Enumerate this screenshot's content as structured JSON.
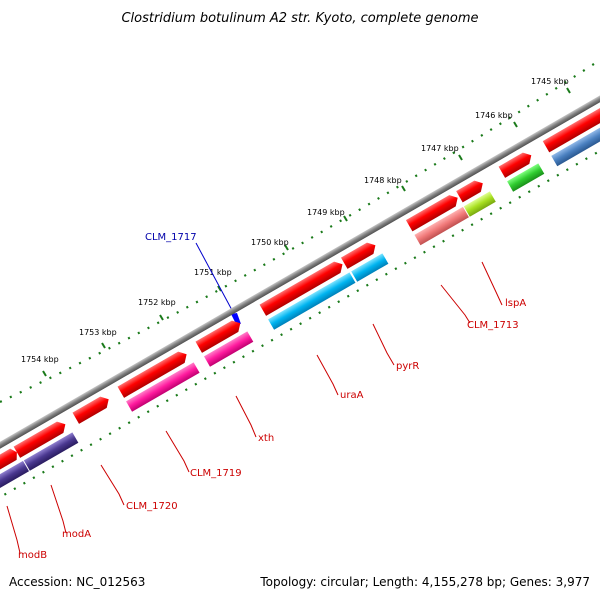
{
  "title": "Clostridium botulinum A2 str. Kyoto, complete genome",
  "footer": {
    "accession": "Accession: NC_012563",
    "summary": "Topology: circular; Length: 4,155,278 bp; Genes: 3,977"
  },
  "colors": {
    "backbone": "#808080",
    "ticks": "#1a7a1a",
    "label_red": "#cc0000",
    "label_blue": "#0000aa",
    "cds_red": "#ff0000",
    "blue_marker": "#0000ff"
  },
  "kbp_ticks": [
    "1745 kbp",
    "1746 kbp",
    "1747 kbp",
    "1748 kbp",
    "1749 kbp",
    "1750 kbp",
    "1751 kbp",
    "1752 kbp",
    "1753 kbp",
    "1754 kbp"
  ],
  "gene_labels": {
    "clm_1717": "CLM_1717",
    "lspA": "lspA",
    "clm_1713": "CLM_1713",
    "pyrR": "pyrR",
    "uraA": "uraA",
    "xth": "xth",
    "clm_1719": "CLM_1719",
    "clm_1720": "CLM_1720",
    "modA": "modA",
    "modB": "modB"
  }
}
